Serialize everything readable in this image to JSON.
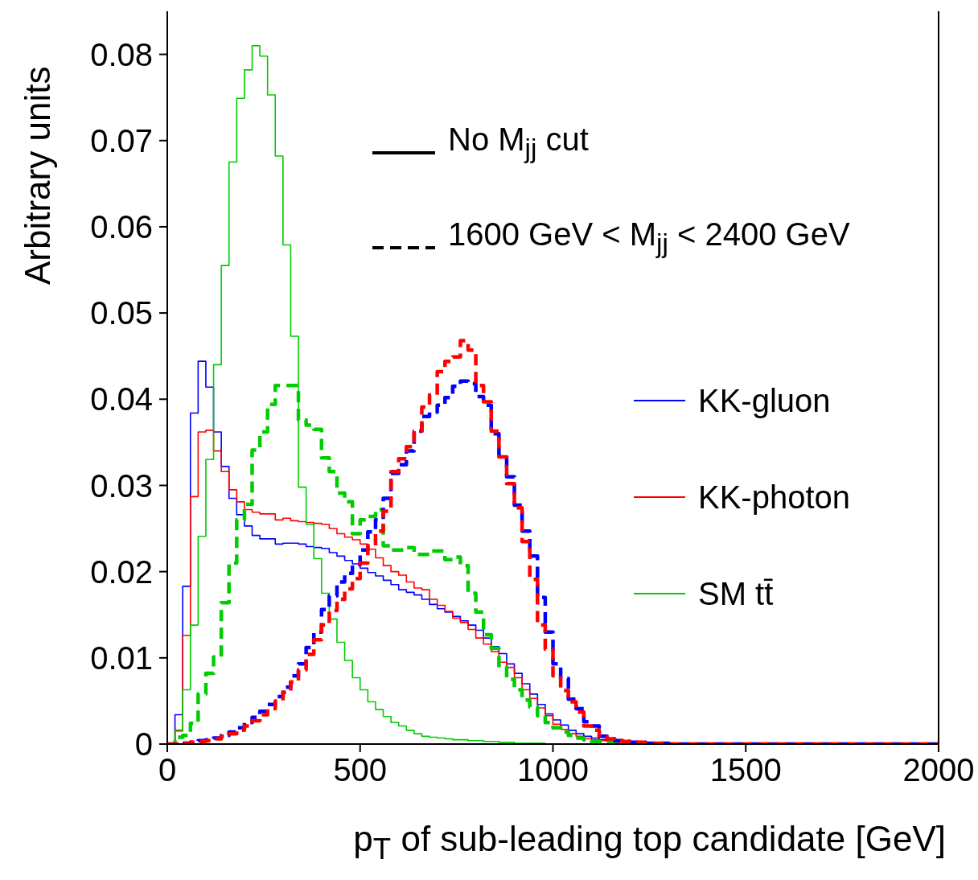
{
  "chart_data": {
    "type": "step",
    "xlabel": "p$_{T}$ of sub-leading top candidate [GeV]",
    "ylabel": "Arbitrary units",
    "annotations": [
      "No M$_{jj}$ cut",
      "1600 GeV < M$_{jj}$ < 2400 GeV"
    ],
    "x": [
      0,
      20,
      40,
      60,
      80,
      100,
      120,
      140,
      160,
      180,
      200,
      220,
      240,
      260,
      280,
      300,
      320,
      340,
      360,
      380,
      400,
      420,
      440,
      460,
      480,
      500,
      520,
      540,
      560,
      580,
      600,
      620,
      640,
      660,
      680,
      700,
      720,
      740,
      760,
      780,
      800,
      820,
      840,
      860,
      880,
      900,
      920,
      940,
      960,
      980,
      1000,
      1020,
      1040,
      1060,
      1080,
      1100,
      1120,
      1140,
      1160,
      1180,
      1200,
      1220,
      1240,
      1260,
      1280,
      1300,
      2000
    ],
    "xlim": [
      0,
      2000
    ],
    "xticks": [
      0,
      500,
      1000,
      1500,
      2000
    ],
    "ylim": [
      0,
      0.085
    ],
    "yticks": [
      0,
      0.01,
      0.02,
      0.03,
      0.04,
      0.05,
      0.06,
      0.07,
      0.08
    ],
    "legend": "right",
    "marker": "none",
    "series": [
      {
        "name": "KK-gluon",
        "color": "#0000ff",
        "line_style": "solid",
        "values": [
          0,
          0.0034,
          0.0183,
          0.0384,
          0.0444,
          0.0414,
          0.0362,
          0.0322,
          0.0285,
          0.0266,
          0.0253,
          0.0242,
          0.0238,
          0.0238,
          0.0232,
          0.0233,
          0.0233,
          0.0232,
          0.0229,
          0.0228,
          0.0227,
          0.0222,
          0.0218,
          0.0213,
          0.0209,
          0.0204,
          0.0199,
          0.0195,
          0.019,
          0.0185,
          0.0179,
          0.0176,
          0.0173,
          0.0168,
          0.0162,
          0.0157,
          0.0153,
          0.0148,
          0.0143,
          0.0138,
          0.0132,
          0.0123,
          0.0113,
          0.0105,
          0.0093,
          0.0082,
          0.007,
          0.0058,
          0.0046,
          0.0035,
          0.0028,
          0.0022,
          0.0016,
          0.0012,
          0.0009,
          0.0007,
          0.0005,
          0.0004,
          0.0003,
          0.0002,
          0.0001,
          0.0001,
          0.0001,
          0,
          0,
          0,
          0
        ]
      },
      {
        "name": "KK-photon",
        "color": "#ff0000",
        "line_style": "solid",
        "values": [
          0,
          0.0016,
          0.0126,
          0.0287,
          0.0362,
          0.0364,
          0.034,
          0.0316,
          0.0295,
          0.0281,
          0.0272,
          0.0269,
          0.0267,
          0.0267,
          0.026,
          0.0262,
          0.0259,
          0.0258,
          0.0257,
          0.0256,
          0.0255,
          0.025,
          0.0244,
          0.024,
          0.0237,
          0.0232,
          0.0226,
          0.0216,
          0.0207,
          0.02,
          0.0196,
          0.0188,
          0.0181,
          0.0179,
          0.0168,
          0.0161,
          0.0154,
          0.0146,
          0.0141,
          0.0133,
          0.0123,
          0.0116,
          0.0107,
          0.0095,
          0.0089,
          0.0077,
          0.0063,
          0.0053,
          0.0042,
          0.0033,
          0.0023,
          0.0017,
          0.0012,
          0.0009,
          0.0006,
          0.0005,
          0.0004,
          0.0003,
          0.0002,
          0.0002,
          0.0001,
          0.0001,
          0.0001,
          0,
          0,
          0,
          0
        ]
      },
      {
        "name": "SM tt̄",
        "color": "#00cc00",
        "line_style": "solid",
        "values": [
          0,
          0.0015,
          0.0063,
          0.0138,
          0.0241,
          0.033,
          0.044,
          0.0555,
          0.0675,
          0.0749,
          0.0782,
          0.081,
          0.0798,
          0.0753,
          0.0682,
          0.0579,
          0.0473,
          0.0298,
          0.0255,
          0.0215,
          0.0175,
          0.0145,
          0.0118,
          0.0097,
          0.0077,
          0.0063,
          0.0049,
          0.004,
          0.0032,
          0.0025,
          0.0021,
          0.0016,
          0.0012,
          0.0009,
          0.0008,
          0.0007,
          0.0006,
          0.0005,
          0.0005,
          0.0004,
          0.0004,
          0.0003,
          0.0003,
          0.0002,
          0.0002,
          0.0001,
          0.0001,
          0.0001,
          0.0001,
          0,
          null,
          null,
          null,
          null,
          null,
          null,
          null,
          null,
          null,
          null,
          null,
          null,
          null,
          null,
          null,
          null,
          null
        ]
      },
      {
        "color": "#00cc00",
        "line_style": "dashed",
        "values": [
          0,
          0.0008,
          0.001,
          0.0024,
          0.0058,
          0.0082,
          0.0101,
          0.0164,
          0.021,
          0.026,
          0.0278,
          0.0341,
          0.0362,
          0.0394,
          0.0416,
          0.0416,
          0.0416,
          0.0376,
          0.037,
          0.0365,
          0.0332,
          0.0316,
          0.0291,
          0.0281,
          0.0244,
          0.026,
          0.0264,
          0.0272,
          0.023,
          0.0225,
          0.0225,
          0.0228,
          0.022,
          0.022,
          0.0224,
          0.0224,
          0.0214,
          0.0217,
          0.0207,
          0.0175,
          0.0153,
          0.0127,
          0.0111,
          0.0089,
          0.0075,
          0.0063,
          0.0051,
          0.0043,
          0.0033,
          0.0025,
          0.0019,
          0.0014,
          0.001,
          0.0007,
          0.0005,
          0.0003,
          0.0003,
          0.0002,
          0.0001,
          0.0001,
          0,
          null,
          null,
          null,
          null,
          null,
          null
        ]
      },
      {
        "color": "#0000ff",
        "line_style": "dashed",
        "values": [
          null,
          null,
          0.0001,
          0.0002,
          0.0004,
          0.0005,
          0.0007,
          0.001,
          0.0014,
          0.0019,
          0.0025,
          0.0031,
          0.0038,
          0.0046,
          0.0055,
          0.0066,
          0.0079,
          0.0093,
          0.0112,
          0.013,
          0.0156,
          0.0172,
          0.0188,
          0.0198,
          0.0208,
          0.0225,
          0.0246,
          0.026,
          0.0285,
          0.0314,
          0.0324,
          0.034,
          0.0363,
          0.038,
          0.0385,
          0.0393,
          0.0402,
          0.0415,
          0.0421,
          0.0418,
          0.0403,
          0.0393,
          0.036,
          0.0335,
          0.031,
          0.0277,
          0.0247,
          0.0218,
          0.017,
          0.013,
          0.0093,
          0.0076,
          0.0052,
          0.0041,
          0.0026,
          0.0021,
          0.0009,
          0.0006,
          0.0004,
          0.0003,
          0.0002,
          0.0002,
          0.0001,
          0.0001,
          0.0001,
          0,
          0
        ]
      },
      {
        "color": "#ff0000",
        "line_style": "dashed",
        "values": [
          0,
          0,
          0.0001,
          0.0002,
          0.0003,
          0.0004,
          0.0006,
          0.0009,
          0.0012,
          0.0016,
          0.0021,
          0.0027,
          0.0034,
          0.0041,
          0.005,
          0.006,
          0.0072,
          0.0086,
          0.0104,
          0.0121,
          0.0138,
          0.0155,
          0.0168,
          0.018,
          0.0192,
          0.021,
          0.023,
          0.0247,
          0.027,
          0.0316,
          0.0331,
          0.0345,
          0.0363,
          0.0391,
          0.0405,
          0.0432,
          0.0444,
          0.0449,
          0.0468,
          0.0457,
          0.0416,
          0.0397,
          0.0363,
          0.0333,
          0.0302,
          0.0274,
          0.0235,
          0.0191,
          0.0138,
          0.011,
          0.0079,
          0.0062,
          0.0049,
          0.0037,
          0.0021,
          0.0016,
          0.0009,
          0.0006,
          0.0004,
          0.0003,
          0.0002,
          0.0002,
          0.0001,
          0.0001,
          0.0001,
          0,
          0
        ]
      }
    ]
  }
}
